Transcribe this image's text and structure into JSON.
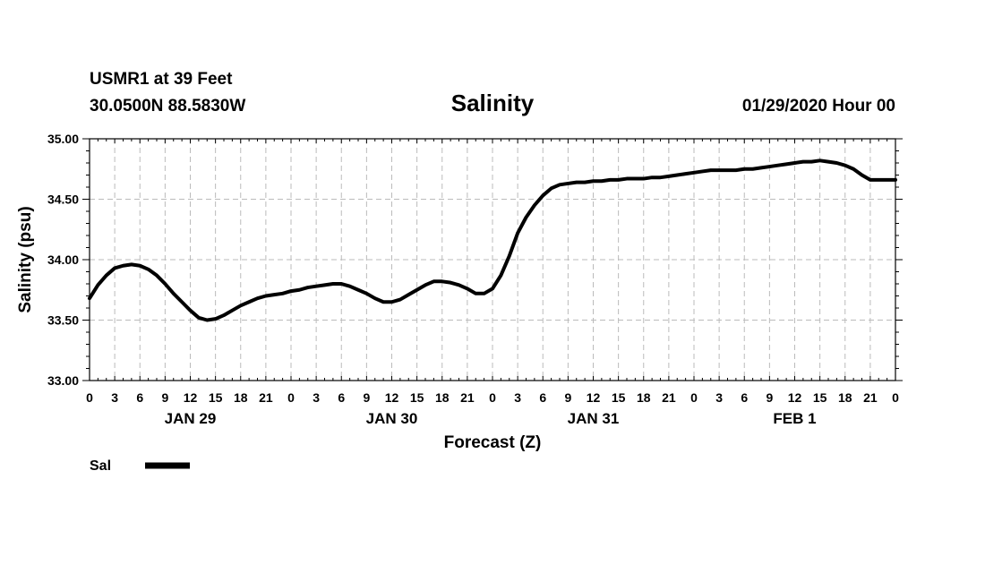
{
  "header": {
    "station": "USMR1 at 39 Feet",
    "coords": "30.0500N 88.5830W",
    "datetime": "01/29/2020 Hour 00"
  },
  "chart_data": {
    "type": "line",
    "title": "Salinity",
    "xlabel": "Forecast (Z)",
    "ylabel": "Salinity (psu)",
    "ylim": [
      33.0,
      35.0
    ],
    "xlim_hours": [
      0,
      96
    ],
    "y_ticks": [
      "33.00",
      "33.50",
      "34.00",
      "34.50",
      "35.00"
    ],
    "y_tick_values": [
      33.0,
      33.5,
      34.0,
      34.5,
      35.0
    ],
    "x_tick_labels": [
      "0",
      "3",
      "6",
      "9",
      "12",
      "15",
      "18",
      "21",
      "0",
      "3",
      "6",
      "9",
      "12",
      "15",
      "18",
      "21",
      "0",
      "3",
      "6",
      "9",
      "12",
      "15",
      "18",
      "21",
      "0",
      "3",
      "6",
      "9",
      "12",
      "15",
      "18",
      "21",
      "0"
    ],
    "day_labels": [
      {
        "label": "JAN 29",
        "hour": 12
      },
      {
        "label": "JAN 30",
        "hour": 36
      },
      {
        "label": "JAN 31",
        "hour": 60
      },
      {
        "label": "FEB 1",
        "hour": 84
      }
    ],
    "grid": true,
    "legend_position": "bottom-left",
    "series": [
      {
        "name": "Sal",
        "color": "#000000",
        "x_hours": [
          0,
          1,
          2,
          3,
          4,
          5,
          6,
          7,
          8,
          9,
          10,
          11,
          12,
          13,
          14,
          15,
          16,
          17,
          18,
          19,
          20,
          21,
          22,
          23,
          24,
          25,
          26,
          27,
          28,
          29,
          30,
          31,
          32,
          33,
          34,
          35,
          36,
          37,
          38,
          39,
          40,
          41,
          42,
          43,
          44,
          45,
          46,
          47,
          48,
          49,
          50,
          51,
          52,
          53,
          54,
          55,
          56,
          57,
          58,
          59,
          60,
          61,
          62,
          63,
          64,
          65,
          66,
          67,
          68,
          69,
          70,
          71,
          72,
          73,
          74,
          75,
          76,
          77,
          78,
          79,
          80,
          81,
          82,
          83,
          84,
          85,
          86,
          87,
          88,
          89,
          90,
          91,
          92,
          93,
          94,
          95,
          96
        ],
        "values": [
          33.68,
          33.79,
          33.87,
          33.93,
          33.95,
          33.96,
          33.95,
          33.92,
          33.87,
          33.8,
          33.72,
          33.65,
          33.58,
          33.52,
          33.5,
          33.51,
          33.54,
          33.58,
          33.62,
          33.65,
          33.68,
          33.7,
          33.71,
          33.72,
          33.74,
          33.75,
          33.77,
          33.78,
          33.79,
          33.8,
          33.8,
          33.78,
          33.75,
          33.72,
          33.68,
          33.65,
          33.65,
          33.67,
          33.71,
          33.75,
          33.79,
          33.82,
          33.82,
          33.81,
          33.79,
          33.76,
          33.72,
          33.72,
          33.76,
          33.87,
          34.03,
          34.22,
          34.35,
          34.45,
          34.53,
          34.59,
          34.62,
          34.63,
          34.64,
          34.64,
          34.65,
          34.65,
          34.66,
          34.66,
          34.67,
          34.67,
          34.67,
          34.68,
          34.68,
          34.69,
          34.7,
          34.71,
          34.72,
          34.73,
          34.74,
          34.74,
          34.74,
          34.74,
          34.75,
          34.75,
          34.76,
          34.77,
          34.78,
          34.79,
          34.8,
          34.81,
          34.81,
          34.82,
          34.81,
          34.8,
          34.78,
          34.75,
          34.7,
          34.66,
          34.66,
          34.66,
          34.66
        ]
      }
    ]
  }
}
